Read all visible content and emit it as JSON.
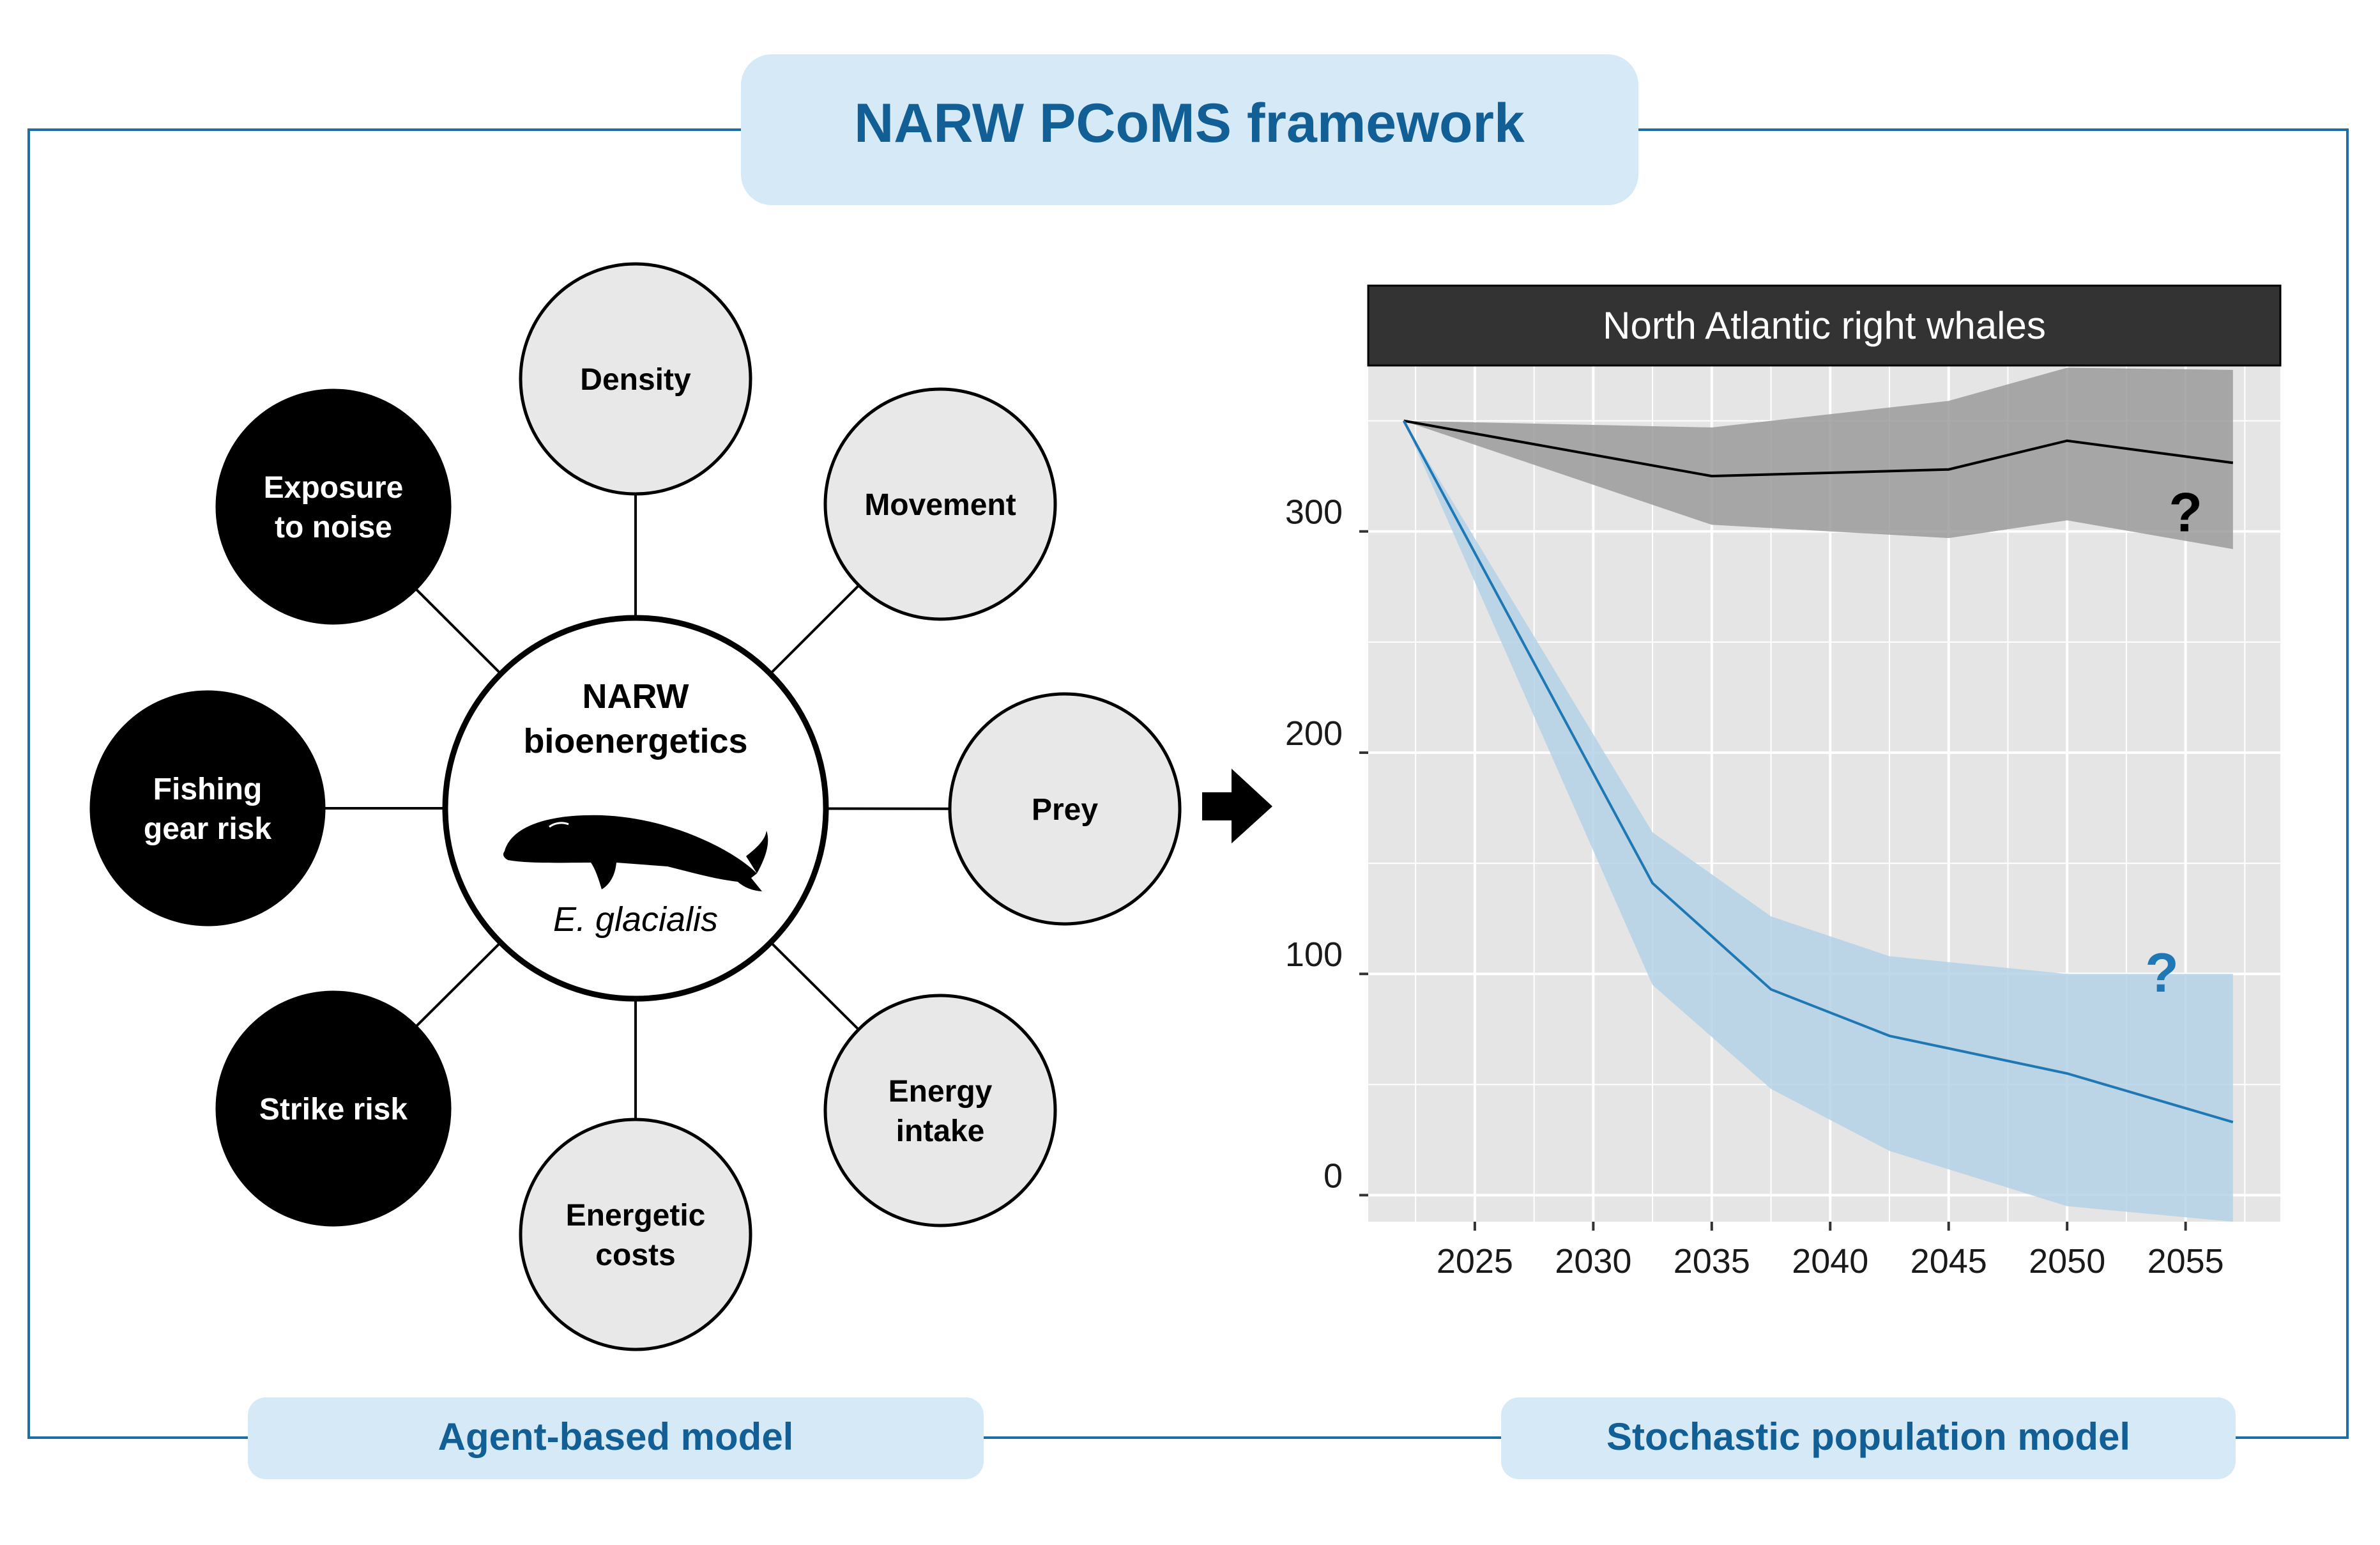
{
  "title": "NARW PCoMS framework",
  "colors": {
    "frame": "#1c6ea4",
    "pill": "#d6e9f7",
    "pill_text": "#125f96",
    "driver_fill": "#000000",
    "state_fill": "#e8e8e8",
    "panel_bg": "#e5e5e5",
    "strip_bg": "#333333",
    "gray_series": "#000000",
    "gray_band": "#9b9b9b",
    "blue_series": "#1f78b4",
    "blue_band": "#b4d2e7"
  },
  "abm": {
    "label": "Agent-based model",
    "center": {
      "line1": "NARW",
      "line2": "bioenergetics",
      "species": "E. glacialis",
      "icon": "right-whale-silhouette-icon"
    },
    "nodes": [
      {
        "id": "density",
        "lines": [
          "Density"
        ],
        "kind": "state"
      },
      {
        "id": "movement",
        "lines": [
          "Movement"
        ],
        "kind": "state"
      },
      {
        "id": "prey",
        "lines": [
          "Prey"
        ],
        "kind": "state"
      },
      {
        "id": "energy-intake",
        "lines": [
          "Energy",
          "intake"
        ],
        "kind": "state"
      },
      {
        "id": "energetic-costs",
        "lines": [
          "Energetic",
          "costs"
        ],
        "kind": "state"
      },
      {
        "id": "strike-risk",
        "lines": [
          "Strike risk"
        ],
        "kind": "driver"
      },
      {
        "id": "fishing-gear-risk",
        "lines": [
          "Fishing",
          "gear risk"
        ],
        "kind": "driver"
      },
      {
        "id": "exposure-to-noise",
        "lines": [
          "Exposure",
          "to noise"
        ],
        "kind": "driver"
      }
    ]
  },
  "arrow_icon": "right-arrow-icon",
  "spm": {
    "label": "Stochastic population model"
  },
  "chart_data": {
    "type": "line",
    "title": "North Atlantic right whales",
    "xlabel": "",
    "ylabel": "",
    "xlim": [
      2020.5,
      2059
    ],
    "ylim": [
      -12,
      375
    ],
    "xticks": [
      2025,
      2030,
      2035,
      2040,
      2045,
      2050,
      2055
    ],
    "yticks": [
      0,
      100,
      200,
      300
    ],
    "grid": true,
    "legend": "none",
    "series": [
      {
        "x": [
          2022,
          2035,
          2045,
          2050,
          2057
        ],
        "y": [
          350,
          325,
          328,
          341,
          331
        ],
        "lower": [
          350,
          303,
          297,
          305,
          292
        ],
        "upper": [
          350,
          347,
          359,
          374,
          373
        ],
        "annotation": "?",
        "annotation_at": [
          2055,
          300
        ]
      },
      {
        "x": [
          2022,
          2032.5,
          2037.5,
          2042.5,
          2050,
          2057
        ],
        "y": [
          350,
          141,
          93,
          72,
          55,
          33
        ],
        "lower": [
          350,
          95,
          48,
          20,
          -5,
          -12
        ],
        "upper": [
          350,
          164,
          126,
          108,
          100,
          100
        ],
        "annotation": "?",
        "annotation_at": [
          2054,
          92
        ]
      }
    ]
  }
}
